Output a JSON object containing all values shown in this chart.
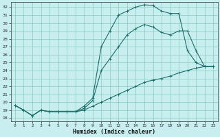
{
  "xlabel": "Humidex (Indice chaleur)",
  "bg_color": "#c8eef0",
  "grid_color": "#88ccbb",
  "line_color": "#1a6e6a",
  "xlim": [
    -0.5,
    23.5
  ],
  "ylim": [
    17.6,
    32.6
  ],
  "yticks": [
    18,
    19,
    20,
    21,
    22,
    23,
    24,
    25,
    26,
    27,
    28,
    29,
    30,
    31,
    32
  ],
  "xticks": [
    0,
    1,
    2,
    3,
    4,
    5,
    6,
    7,
    8,
    9,
    10,
    11,
    12,
    13,
    14,
    15,
    16,
    17,
    18,
    19,
    20,
    21,
    22,
    23
  ],
  "line1_x": [
    0,
    1,
    2,
    3,
    4,
    5,
    6,
    7,
    8,
    9,
    10,
    11,
    12,
    13,
    14,
    15,
    16,
    17,
    18,
    19,
    20,
    21,
    22,
    23
  ],
  "line1_y": [
    19.6,
    19.0,
    18.3,
    19.0,
    18.8,
    18.8,
    18.8,
    18.8,
    19.5,
    20.5,
    27.0,
    29.0,
    31.0,
    31.5,
    32.0,
    32.3,
    32.2,
    31.5,
    31.2,
    31.2,
    26.5,
    25.0,
    24.5,
    24.5
  ],
  "line2_x": [
    0,
    1,
    2,
    3,
    4,
    5,
    6,
    7,
    8,
    9,
    10,
    11,
    12,
    13,
    14,
    15,
    16,
    17,
    18,
    19,
    20,
    21,
    22,
    23
  ],
  "line2_y": [
    19.6,
    19.0,
    18.3,
    19.0,
    18.8,
    18.8,
    18.8,
    18.8,
    19.2,
    20.2,
    24.0,
    25.5,
    27.0,
    28.5,
    29.3,
    29.8,
    29.5,
    28.8,
    28.5,
    29.0,
    29.0,
    26.5,
    24.5,
    24.5
  ],
  "line3_x": [
    0,
    1,
    2,
    3,
    4,
    5,
    6,
    7,
    8,
    9,
    10,
    11,
    12,
    13,
    14,
    15,
    16,
    17,
    18,
    19,
    20,
    21,
    22,
    23
  ],
  "line3_y": [
    19.6,
    19.0,
    18.3,
    19.0,
    18.8,
    18.8,
    18.8,
    18.8,
    19.0,
    19.5,
    20.0,
    20.5,
    21.0,
    21.5,
    22.0,
    22.5,
    22.8,
    23.0,
    23.3,
    23.7,
    24.0,
    24.3,
    24.5,
    24.5
  ]
}
